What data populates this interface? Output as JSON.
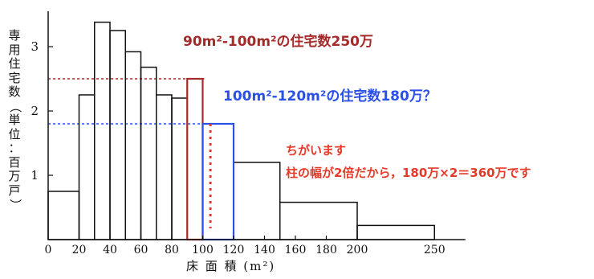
{
  "chart_data": {
    "type": "bar",
    "title": "",
    "xlabel": "床 面 積 (m²)",
    "ylabel": "専用住宅数（単位：百万戸）",
    "xlim": [
      0,
      270
    ],
    "ylim": [
      0,
      3.55
    ],
    "x_ticks": [
      "0",
      "20",
      "40",
      "60",
      "80",
      "100",
      "120",
      "140",
      "160",
      "180",
      "200",
      "250"
    ],
    "x_tick_values": [
      0,
      20,
      40,
      60,
      80,
      100,
      120,
      140,
      160,
      180,
      200,
      250
    ],
    "y_ticks": [
      "1",
      "2",
      "3"
    ],
    "y_tick_values": [
      1,
      2,
      3
    ],
    "bins": [
      {
        "x0": 0,
        "x1": 20,
        "value": 0.75
      },
      {
        "x0": 20,
        "x1": 30,
        "value": 2.25
      },
      {
        "x0": 30,
        "x1": 40,
        "value": 3.38
      },
      {
        "x0": 40,
        "x1": 50,
        "value": 3.25
      },
      {
        "x0": 50,
        "x1": 60,
        "value": 2.92
      },
      {
        "x0": 60,
        "x1": 70,
        "value": 2.68
      },
      {
        "x0": 70,
        "x1": 80,
        "value": 2.25
      },
      {
        "x0": 80,
        "x1": 90,
        "value": 2.2
      },
      {
        "x0": 90,
        "x1": 100,
        "value": 2.5
      },
      {
        "x0": 100,
        "x1": 120,
        "value": 1.8
      },
      {
        "x0": 120,
        "x1": 150,
        "value": 1.2
      },
      {
        "x0": 150,
        "x1": 200,
        "value": 0.58
      },
      {
        "x0": 200,
        "x1": 250,
        "value": 0.22
      }
    ],
    "reference_lines": [
      {
        "value": 2.5,
        "color": "#a52a2a"
      },
      {
        "value": 1.8,
        "color": "#2b50e8"
      }
    ],
    "highlights": [
      {
        "x0": 90,
        "x1": 100,
        "color": "#a52a2a"
      },
      {
        "x0": 100,
        "x1": 120,
        "color": "#2b50e8"
      }
    ],
    "dotted_marker": {
      "x": 105,
      "value": 1.8,
      "color": "#e53a2a"
    },
    "annotations": [
      {
        "text": "90m²-100m²の住宅数250万",
        "color": "#a52a2a"
      },
      {
        "text": "100m²-120m²の住宅数180万？",
        "color": "#2b50e8"
      },
      {
        "text": "ちがいます",
        "color": "#e53a2a"
      },
      {
        "text": "柱の幅が2倍だから，180万×2＝360万です",
        "color": "#e53a2a"
      }
    ]
  }
}
